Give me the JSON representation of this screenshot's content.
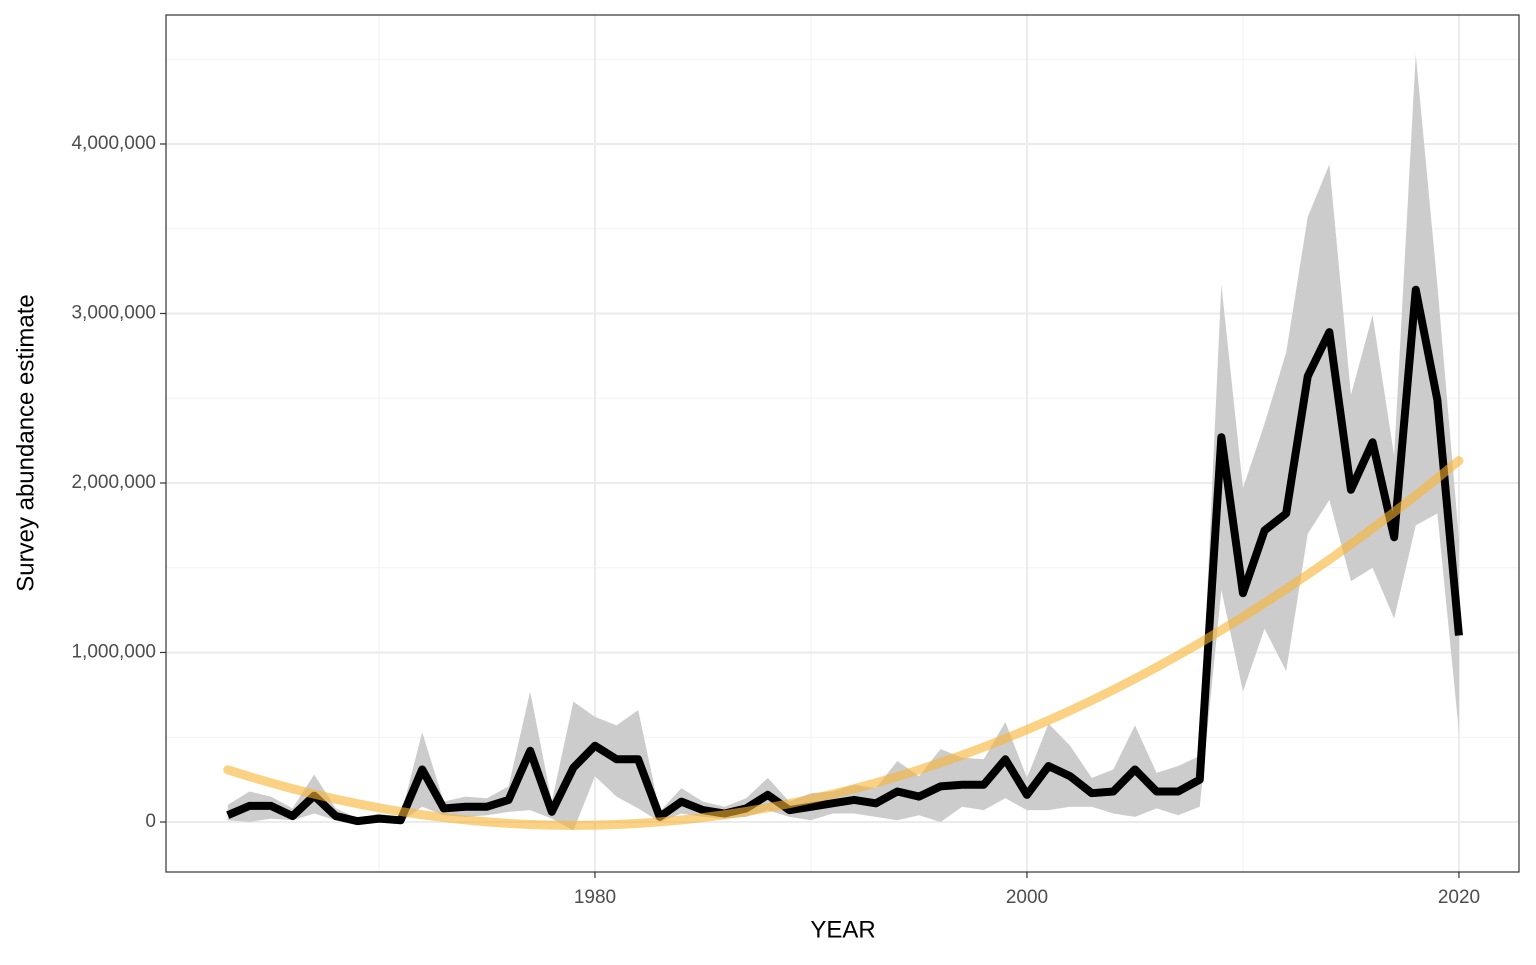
{
  "chart_data": {
    "type": "line",
    "x_label": "YEAR",
    "y_label": "Survey abundance estimate",
    "x": [
      1963,
      1964,
      1965,
      1966,
      1967,
      1968,
      1969,
      1970,
      1971,
      1972,
      1973,
      1974,
      1975,
      1976,
      1977,
      1978,
      1979,
      1980,
      1981,
      1982,
      1983,
      1984,
      1985,
      1986,
      1987,
      1988,
      1989,
      1990,
      1991,
      1992,
      1993,
      1994,
      1995,
      1996,
      1997,
      1998,
      1999,
      2000,
      2001,
      2002,
      2003,
      2004,
      2005,
      2006,
      2007,
      2008,
      2009,
      2010,
      2011,
      2012,
      2013,
      2014,
      2015,
      2016,
      2017,
      2018,
      2019,
      2020
    ],
    "values": [
      40000,
      95000,
      95000,
      35000,
      155000,
      35000,
      5000,
      20000,
      10000,
      310000,
      80000,
      90000,
      90000,
      130000,
      420000,
      60000,
      320000,
      450000,
      370000,
      370000,
      30000,
      120000,
      70000,
      50000,
      80000,
      160000,
      70000,
      90000,
      110000,
      130000,
      110000,
      180000,
      150000,
      210000,
      220000,
      220000,
      370000,
      160000,
      330000,
      270000,
      170000,
      180000,
      310000,
      180000,
      180000,
      250000,
      2270000,
      1350000,
      1720000,
      1820000,
      2630000,
      2890000,
      1960000,
      2240000,
      1680000,
      3140000,
      2490000,
      1100000
    ],
    "lower": [
      10000,
      0,
      20000,
      10000,
      50000,
      10000,
      0,
      0,
      0,
      90000,
      40000,
      30000,
      40000,
      60000,
      70000,
      20000,
      -50000,
      270000,
      150000,
      80000,
      0,
      50000,
      30000,
      20000,
      30000,
      70000,
      30000,
      10000,
      50000,
      50000,
      30000,
      10000,
      40000,
      0,
      90000,
      70000,
      140000,
      70000,
      70000,
      90000,
      90000,
      50000,
      30000,
      80000,
      40000,
      90000,
      1370000,
      770000,
      1140000,
      890000,
      1700000,
      1900000,
      1420000,
      1500000,
      1200000,
      1750000,
      1820000,
      530000
    ],
    "upper": [
      100000,
      180000,
      150000,
      80000,
      280000,
      80000,
      20000,
      50000,
      30000,
      530000,
      120000,
      150000,
      140000,
      210000,
      770000,
      120000,
      710000,
      620000,
      570000,
      660000,
      60000,
      200000,
      120000,
      90000,
      140000,
      260000,
      120000,
      170000,
      180000,
      220000,
      200000,
      360000,
      270000,
      430000,
      380000,
      370000,
      590000,
      260000,
      580000,
      450000,
      260000,
      310000,
      570000,
      290000,
      330000,
      390000,
      3170000,
      1970000,
      2350000,
      2770000,
      3570000,
      3880000,
      2520000,
      2990000,
      2160000,
      4530000,
      3170000,
      1670000
    ],
    "trend": [
      307680,
      268000,
      230880,
      196320,
      164320,
      134880,
      108000,
      83680,
      61920,
      42720,
      26080,
      12000,
      480,
      -8480,
      -14880,
      -18720,
      -20000,
      -18720,
      -14880,
      -8480,
      480,
      12000,
      26080,
      42720,
      61920,
      83680,
      108000,
      134880,
      164320,
      196320,
      230880,
      268000,
      307680,
      349920,
      394720,
      442080,
      492000,
      544480,
      599520,
      657120,
      717280,
      780000,
      845280,
      913120,
      983520,
      1056480,
      1132000,
      1210080,
      1290720,
      1373920,
      1459680,
      1548000,
      1638880,
      1732320,
      1828320,
      1926880,
      2028000,
      2131680
    ],
    "color": "#000000",
    "band_color": "#cccccc",
    "trend_color": "#f8b332",
    "xlim": [
      1960.14,
      2022.78
    ],
    "ylim": [
      -295000,
      4761000
    ],
    "xticks": [
      1980,
      2000,
      2020
    ],
    "yticks": [
      0,
      {
        "value": 1000000,
        "label": "1,000,000"
      },
      {
        "value": 2000000,
        "label": "2,000,000"
      },
      {
        "value": 3000000,
        "label": "3,000,000"
      },
      {
        "value": 4000000,
        "label": "4,000,000"
      }
    ],
    "x_minor_grid": [
      1970,
      1990,
      2010
    ],
    "y_minor_grid": [
      500000,
      1500000,
      2500000,
      3500000,
      4500000
    ],
    "grid": true
  }
}
